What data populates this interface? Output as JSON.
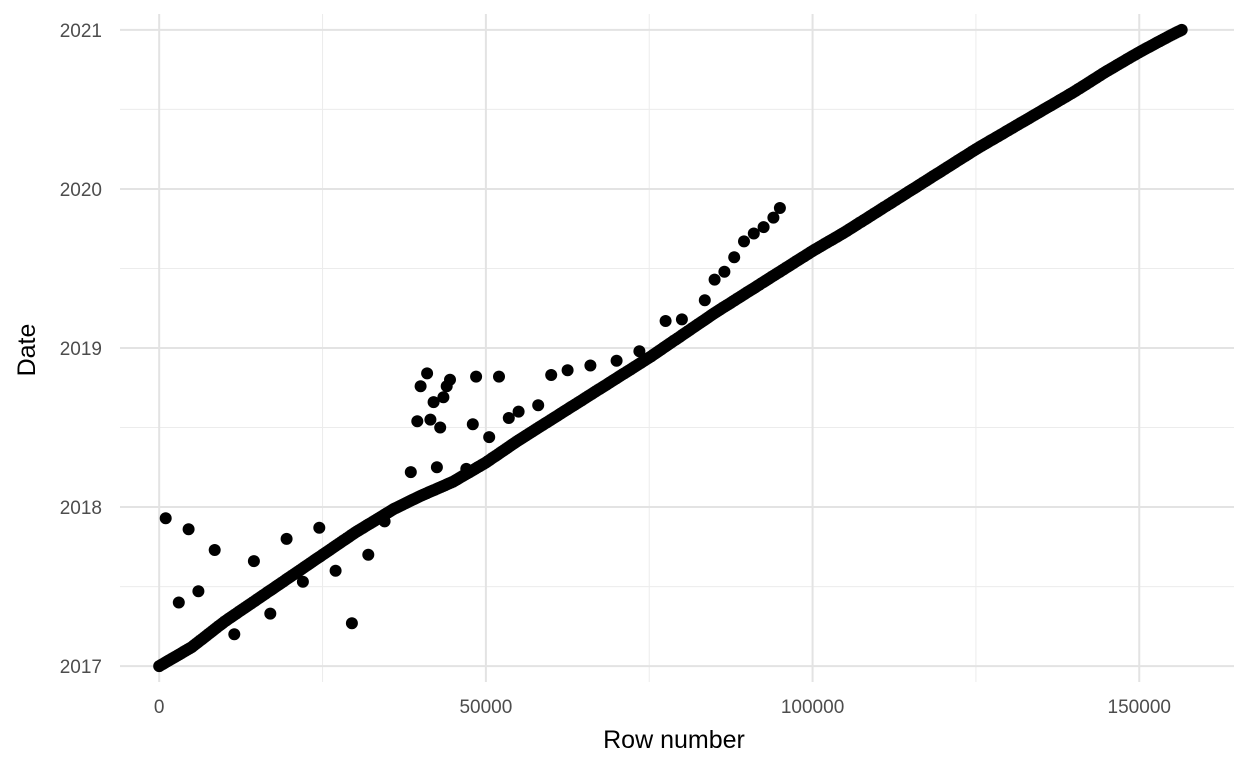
{
  "chart_data": {
    "type": "scatter",
    "title": "",
    "xlabel": "Row number",
    "ylabel": "Date",
    "xlim": [
      -6000,
      164500
    ],
    "ylim": [
      2016.9,
      2021.1
    ],
    "x_ticks": [
      0,
      50000,
      100000,
      150000
    ],
    "x_tick_labels": [
      "0",
      "50000",
      "100000",
      "150000"
    ],
    "y_ticks": [
      2017,
      2018,
      2019,
      2020,
      2021
    ],
    "y_tick_labels": [
      "2017",
      "2018",
      "2019",
      "2020",
      "2021"
    ],
    "grid": true,
    "legend": "none",
    "point_color": "#000000",
    "series": [
      {
        "description_points": "main trend (every row)",
        "points": [
          {
            "x": 0,
            "y": 2017.0
          },
          {
            "x": 5000,
            "y": 2017.12
          },
          {
            "x": 10000,
            "y": 2017.28
          },
          {
            "x": 15000,
            "y": 2017.42
          },
          {
            "x": 20000,
            "y": 2017.56
          },
          {
            "x": 25000,
            "y": 2017.7
          },
          {
            "x": 30000,
            "y": 2017.84
          },
          {
            "x": 36000,
            "y": 2017.99
          },
          {
            "x": 40000,
            "y": 2018.07
          },
          {
            "x": 45000,
            "y": 2018.16
          },
          {
            "x": 50000,
            "y": 2018.28
          },
          {
            "x": 55000,
            "y": 2018.42
          },
          {
            "x": 60000,
            "y": 2018.55
          },
          {
            "x": 65000,
            "y": 2018.68
          },
          {
            "x": 70000,
            "y": 2018.81
          },
          {
            "x": 75000,
            "y": 2018.94
          },
          {
            "x": 80000,
            "y": 2019.08
          },
          {
            "x": 85000,
            "y": 2019.22
          },
          {
            "x": 90000,
            "y": 2019.35
          },
          {
            "x": 95000,
            "y": 2019.48
          },
          {
            "x": 100000,
            "y": 2019.61
          },
          {
            "x": 105000,
            "y": 2019.73
          },
          {
            "x": 110000,
            "y": 2019.86
          },
          {
            "x": 115000,
            "y": 2019.99
          },
          {
            "x": 120000,
            "y": 2020.12
          },
          {
            "x": 125000,
            "y": 2020.25
          },
          {
            "x": 130000,
            "y": 2020.37
          },
          {
            "x": 135000,
            "y": 2020.49
          },
          {
            "x": 140000,
            "y": 2020.61
          },
          {
            "x": 145000,
            "y": 2020.74
          },
          {
            "x": 150000,
            "y": 2020.86
          },
          {
            "x": 155000,
            "y": 2020.97
          },
          {
            "x": 156500,
            "y": 2021.0
          }
        ]
      },
      {
        "points": [
          {
            "x": 1000,
            "y": 2017.93
          },
          {
            "x": 3000,
            "y": 2017.4
          },
          {
            "x": 4500,
            "y": 2017.86
          },
          {
            "x": 6000,
            "y": 2017.47
          },
          {
            "x": 8500,
            "y": 2017.73
          },
          {
            "x": 11500,
            "y": 2017.2
          },
          {
            "x": 14500,
            "y": 2017.66
          },
          {
            "x": 17000,
            "y": 2017.33
          },
          {
            "x": 19500,
            "y": 2017.8
          },
          {
            "x": 22000,
            "y": 2017.53
          },
          {
            "x": 24500,
            "y": 2017.87
          },
          {
            "x": 27000,
            "y": 2017.6
          },
          {
            "x": 29500,
            "y": 2017.27
          },
          {
            "x": 32000,
            "y": 2017.7
          },
          {
            "x": 34500,
            "y": 2017.91
          }
        ]
      },
      {
        "points": [
          {
            "x": 38500,
            "y": 2018.22
          },
          {
            "x": 39500,
            "y": 2018.54
          },
          {
            "x": 40000,
            "y": 2018.76
          },
          {
            "x": 41000,
            "y": 2018.84
          },
          {
            "x": 41500,
            "y": 2018.55
          },
          {
            "x": 42000,
            "y": 2018.66
          },
          {
            "x": 42500,
            "y": 2018.25
          },
          {
            "x": 43000,
            "y": 2018.5
          },
          {
            "x": 43500,
            "y": 2018.69
          },
          {
            "x": 44000,
            "y": 2018.76
          },
          {
            "x": 44500,
            "y": 2018.8
          },
          {
            "x": 47000,
            "y": 2018.24
          },
          {
            "x": 48000,
            "y": 2018.52
          },
          {
            "x": 48500,
            "y": 2018.82
          },
          {
            "x": 50500,
            "y": 2018.44
          },
          {
            "x": 52000,
            "y": 2018.82
          },
          {
            "x": 53500,
            "y": 2018.56
          },
          {
            "x": 55000,
            "y": 2018.6
          },
          {
            "x": 58000,
            "y": 2018.64
          },
          {
            "x": 60000,
            "y": 2018.83
          },
          {
            "x": 62500,
            "y": 2018.86
          },
          {
            "x": 66000,
            "y": 2018.89
          },
          {
            "x": 70000,
            "y": 2018.92
          },
          {
            "x": 73500,
            "y": 2018.98
          },
          {
            "x": 77500,
            "y": 2019.17
          },
          {
            "x": 80000,
            "y": 2019.18
          },
          {
            "x": 83500,
            "y": 2019.3
          },
          {
            "x": 85000,
            "y": 2019.43
          },
          {
            "x": 86500,
            "y": 2019.48
          },
          {
            "x": 88000,
            "y": 2019.57
          },
          {
            "x": 89500,
            "y": 2019.67
          },
          {
            "x": 91000,
            "y": 2019.72
          },
          {
            "x": 92500,
            "y": 2019.76
          },
          {
            "x": 94000,
            "y": 2019.82
          },
          {
            "x": 95000,
            "y": 2019.88
          }
        ]
      }
    ]
  }
}
